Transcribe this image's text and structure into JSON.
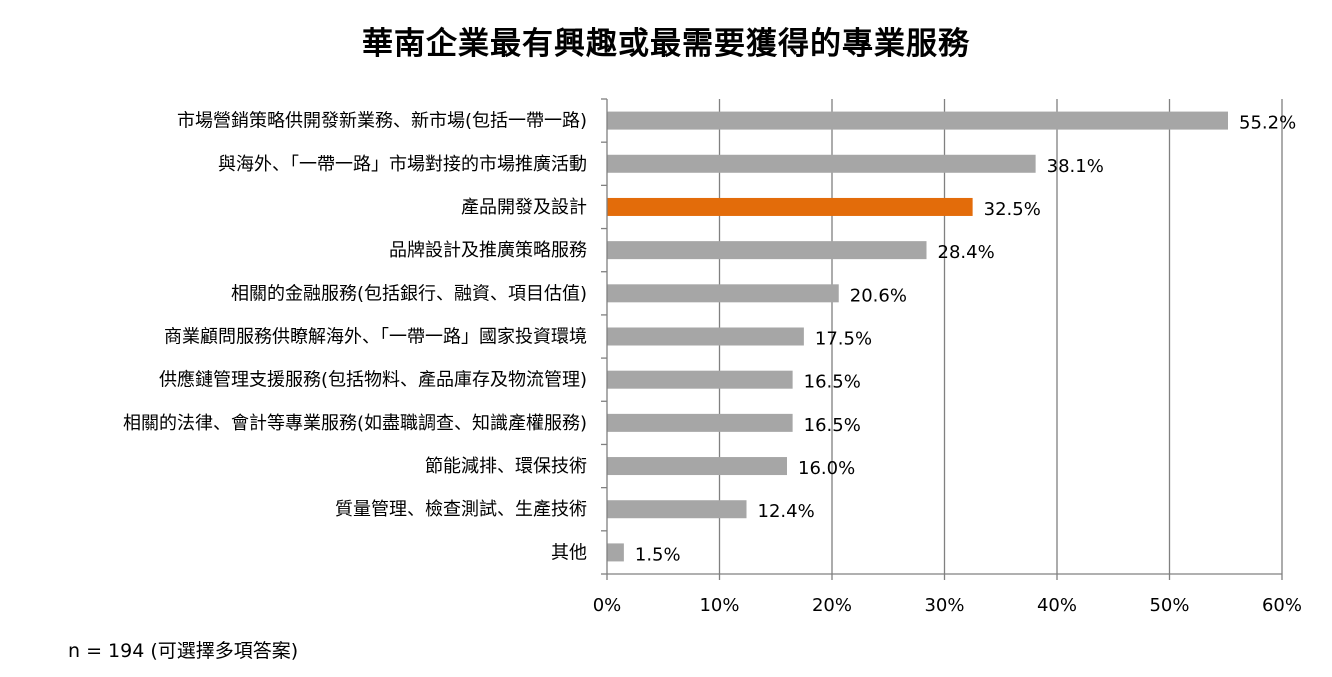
{
  "chart_data": {
    "type": "bar",
    "orientation": "horizontal",
    "title": "華南企業最有興趣或最需要獲得的專業服務",
    "categories": [
      "市場營銷策略供開發新業務、新市場(包括一帶一路)",
      "與海外、「一帶一路」市場對接的市場推廣活動",
      "產品開發及設計",
      "品牌設計及推廣策略服務",
      "相關的金融服務(包括銀行、融資、項目估值)",
      "商業顧問服務供瞭解海外、「一帶一路」國家投資環境",
      "供應鏈管理支援服務(包括物料、產品庫存及物流管理)",
      "相關的法律、會計等專業服務(如盡職調查、知識產權服務)",
      "節能減排、環保技術",
      "質量管理、檢查測試、生產技術",
      "其他"
    ],
    "values": [
      55.2,
      38.1,
      32.5,
      28.4,
      20.6,
      17.5,
      16.5,
      16.5,
      16.0,
      12.4,
      1.5
    ],
    "value_labels": [
      "55.2%",
      "38.1%",
      "32.5%",
      "28.4%",
      "20.6%",
      "17.5%",
      "16.5%",
      "16.5%",
      "16.0%",
      "12.4%",
      "1.5%"
    ],
    "highlight_index": 2,
    "xlim": [
      0,
      60
    ],
    "xticks": [
      0,
      10,
      20,
      30,
      40,
      50,
      60
    ],
    "xtick_labels": [
      "0%",
      "10%",
      "20%",
      "30%",
      "40%",
      "50%",
      "60%"
    ],
    "grid": true,
    "legend": "none",
    "colors": {
      "bar": "#a6a6a6",
      "highlight": "#e36c0a",
      "grid": "#808080",
      "axis": "#808080"
    }
  },
  "footnote": "n = 194 (可選擇多項答案)"
}
